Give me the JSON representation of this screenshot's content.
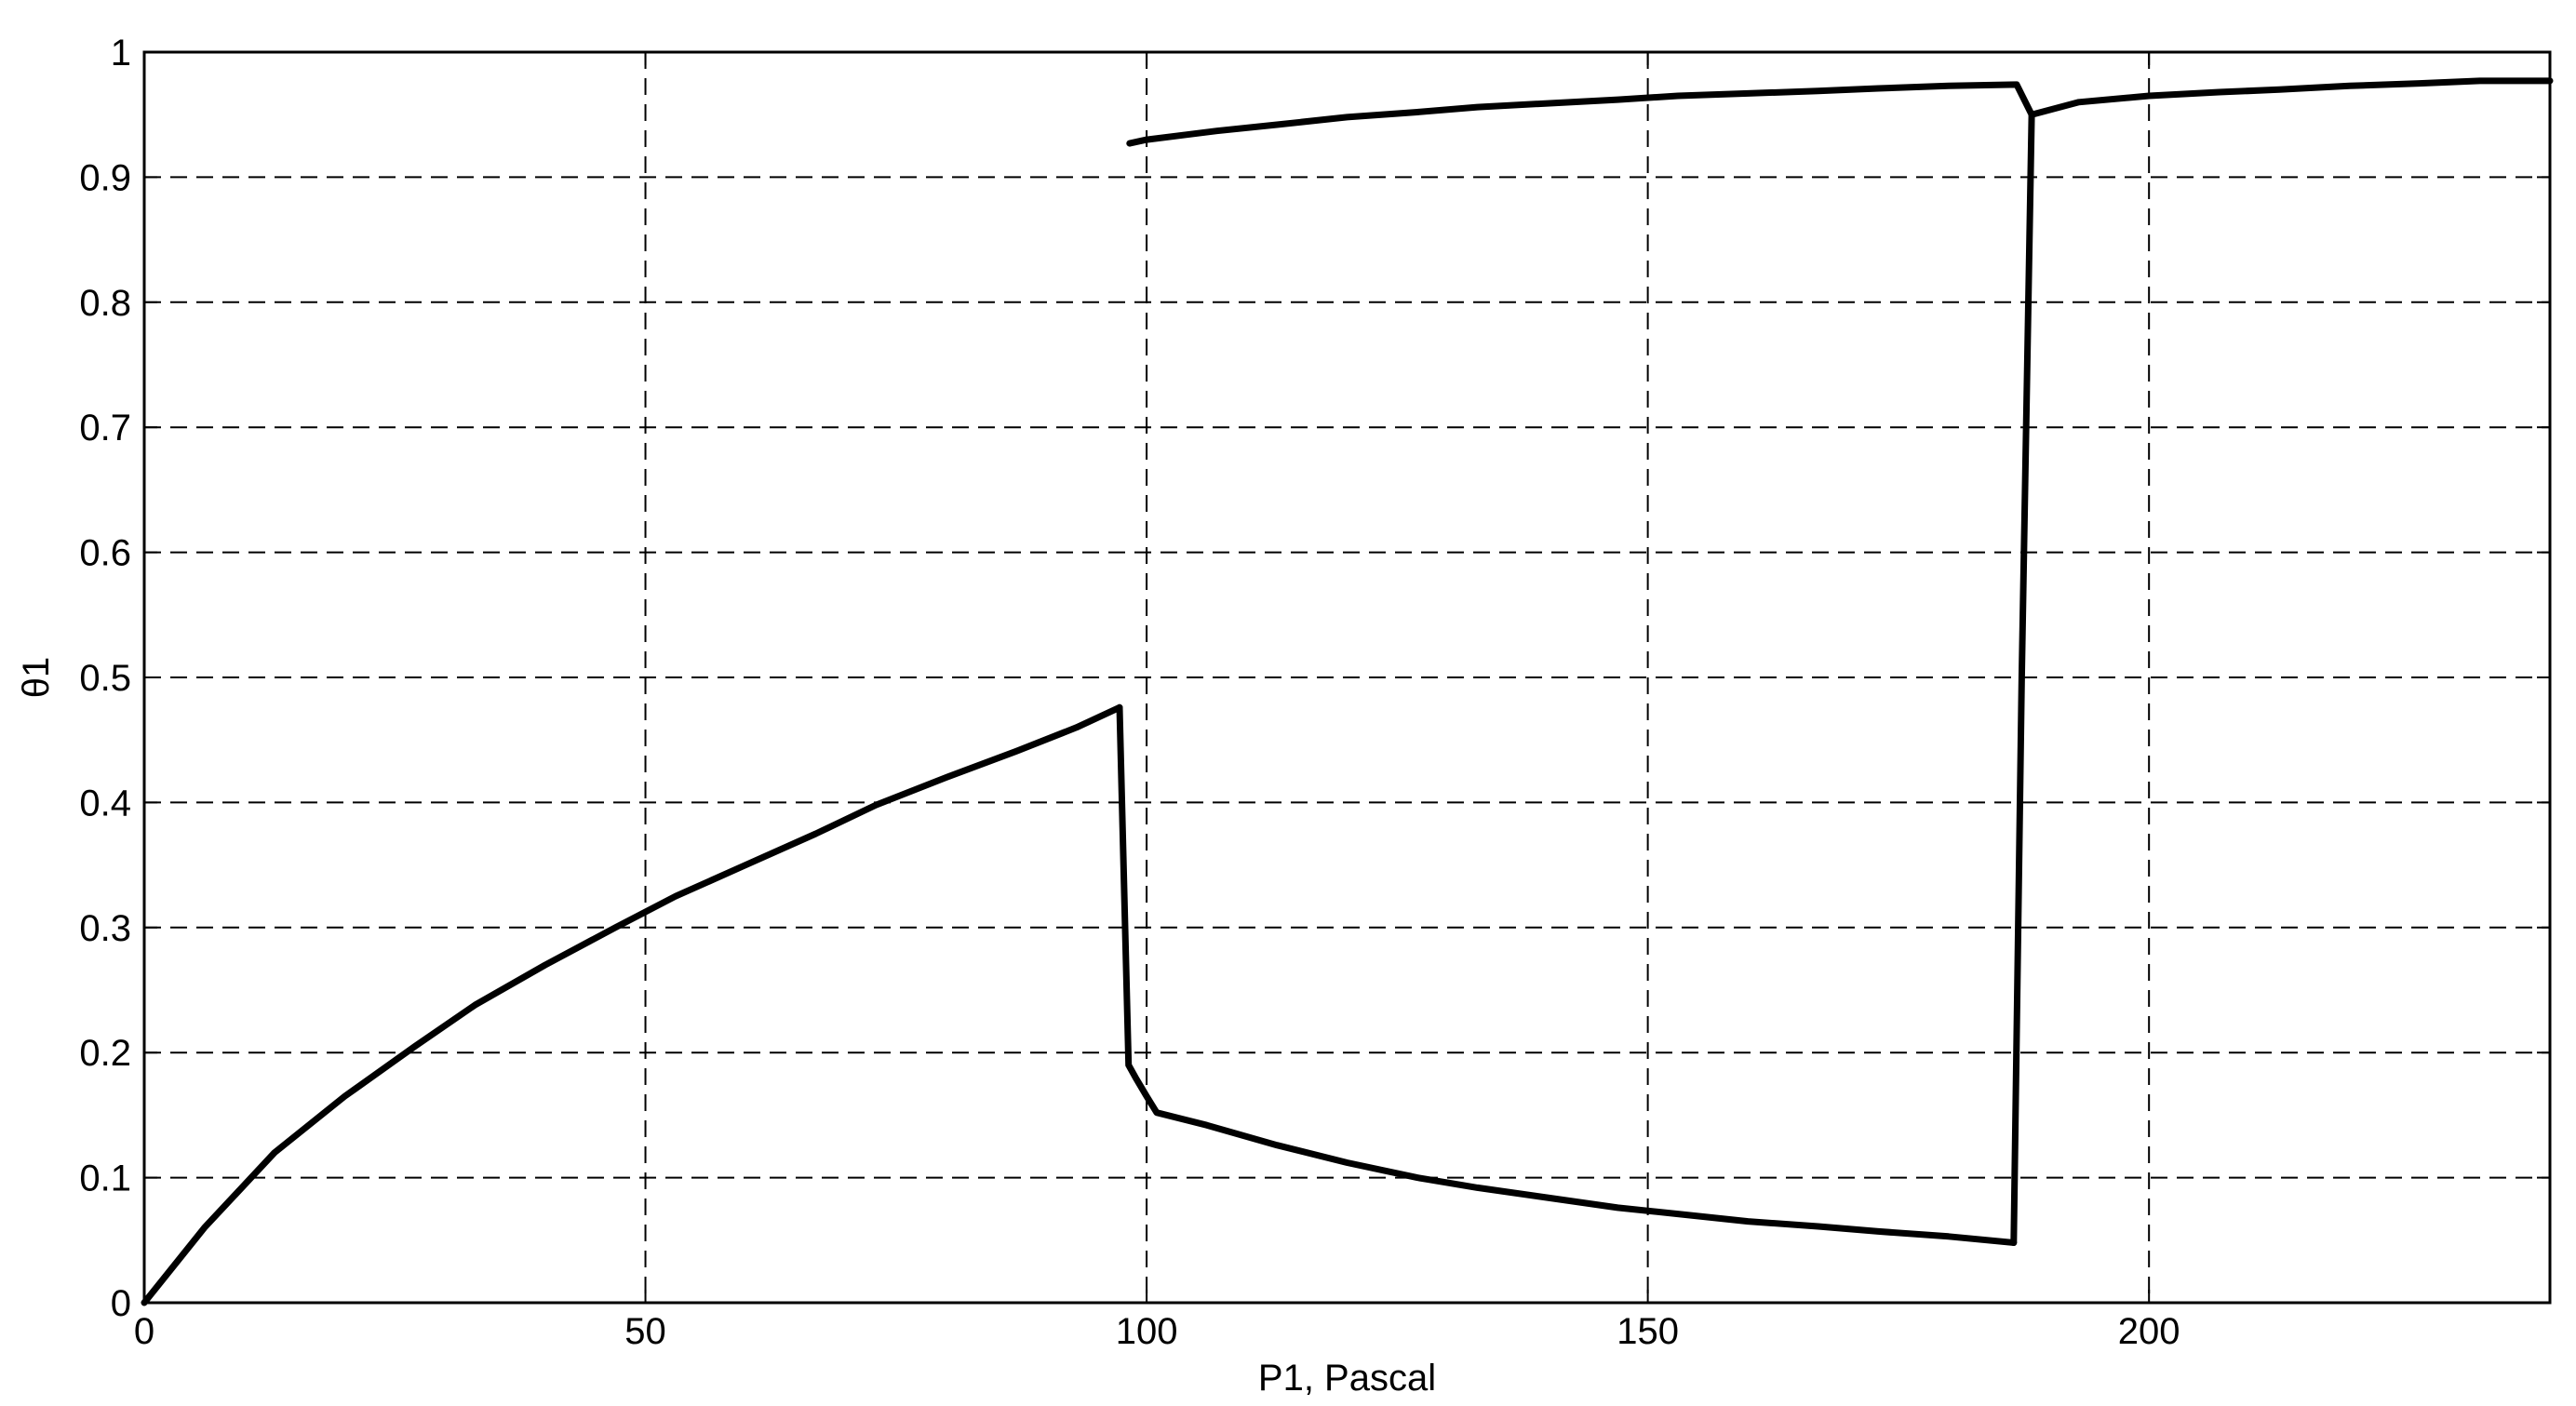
{
  "chart_data": {
    "type": "line",
    "title": "",
    "xlabel": "P1, Pascal",
    "ylabel": "θ1",
    "xlim": [
      0,
      240
    ],
    "ylim": [
      0,
      1
    ],
    "xticks": [
      0,
      50,
      100,
      150,
      200
    ],
    "yticks": [
      0,
      0.1,
      0.2,
      0.3,
      0.4,
      0.5,
      0.6,
      0.7,
      0.8,
      0.9,
      1
    ],
    "xtick_labels": [
      "0",
      "50",
      "100",
      "150",
      "200"
    ],
    "ytick_labels": [
      "0",
      "0.1",
      "0.2",
      "0.3",
      "0.4",
      "0.5",
      "0.6",
      "0.7",
      "0.8",
      "0.9",
      "1"
    ],
    "grid": true,
    "grid_style": "dashed",
    "legend": "none",
    "line_color": "#000000",
    "series": [
      {
        "x": [
          0,
          6,
          13,
          20,
          27,
          33,
          40,
          47,
          53,
          60,
          67,
          73,
          80,
          87,
          93,
          97.3
        ],
        "y": [
          0,
          0.06,
          0.12,
          0.165,
          0.205,
          0.238,
          0.27,
          0.3,
          0.325,
          0.35,
          0.375,
          0.398,
          0.42,
          0.441,
          0.46,
          0.476
        ]
      },
      {
        "x": [
          97.3,
          98.2,
          98.9,
          100,
          101,
          106,
          113,
          120,
          127,
          133,
          140,
          147,
          153,
          160,
          167,
          173,
          180,
          186.5
        ],
        "y": [
          0.476,
          0.19,
          0.18,
          0.165,
          0.152,
          0.142,
          0.126,
          0.112,
          0.1,
          0.092,
          0.084,
          0.076,
          0.071,
          0.065,
          0.061,
          0.057,
          0.053,
          0.048
        ]
      },
      {
        "x": [
          98.3,
          100,
          107,
          113,
          120,
          127,
          133,
          140,
          147,
          153,
          160,
          167,
          173,
          180,
          186.8,
          188.3
        ],
        "y": [
          0.927,
          0.93,
          0.937,
          0.942,
          0.948,
          0.952,
          0.956,
          0.959,
          0.962,
          0.965,
          0.967,
          0.969,
          0.971,
          0.973,
          0.974,
          0.95
        ]
      },
      {
        "x": [
          186.5,
          187.3,
          188.3,
          193,
          200,
          207,
          213,
          220,
          227,
          233,
          240
        ],
        "y": [
          0.048,
          0.5,
          0.95,
          0.96,
          0.965,
          0.968,
          0.97,
          0.973,
          0.975,
          0.977,
          0.977
        ]
      }
    ]
  }
}
